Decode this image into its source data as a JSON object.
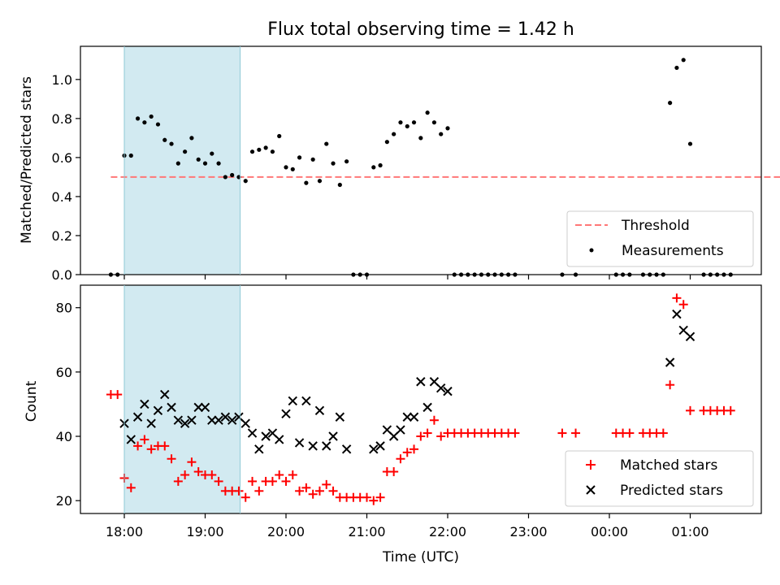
{
  "chart_data": [
    {
      "type": "scatter",
      "title": "Flux total observing time = 1.42 h",
      "ylabel": "Matched/Predicted stars",
      "ylim": [
        0,
        1.17
      ],
      "yticks": [
        "0.0",
        "0.2",
        "0.4",
        "0.6",
        "0.8",
        "1.0"
      ],
      "shaded_interval": [
        "18:00",
        "19:26"
      ],
      "threshold": {
        "name": "Threshold",
        "value": 0.5,
        "x_range": [
          "17:50",
          "02:30"
        ],
        "color": "#ff7777",
        "style": "dashed"
      },
      "series": [
        {
          "name": "Measurements",
          "color": "#000000",
          "x": [
            "17:50",
            "17:55",
            "18:00",
            "18:05",
            "18:10",
            "18:15",
            "18:20",
            "18:25",
            "18:30",
            "18:35",
            "18:40",
            "18:45",
            "18:50",
            "18:55",
            "19:00",
            "19:05",
            "19:10",
            "19:15",
            "19:20",
            "19:25",
            "19:30",
            "19:35",
            "19:40",
            "19:45",
            "19:50",
            "19:55",
            "20:00",
            "20:05",
            "20:10",
            "20:15",
            "20:20",
            "20:25",
            "20:30",
            "20:35",
            "20:40",
            "20:45",
            "20:50",
            "20:55",
            "21:00",
            "21:05",
            "21:10",
            "21:15",
            "21:20",
            "21:25",
            "21:30",
            "21:35",
            "21:40",
            "21:45",
            "21:50",
            "21:55",
            "22:00",
            "22:05",
            "22:10",
            "22:15",
            "22:20",
            "22:25",
            "22:30",
            "22:35",
            "22:40",
            "22:45",
            "22:50",
            "23:25",
            "23:35",
            "00:05",
            "00:10",
            "00:15",
            "00:25",
            "00:30",
            "00:35",
            "00:40",
            "00:45",
            "00:50",
            "00:55",
            "01:00",
            "01:10",
            "01:15",
            "01:20",
            "01:25",
            "01:30"
          ],
          "y": [
            0.0,
            0.0,
            0.61,
            0.61,
            0.8,
            0.78,
            0.81,
            0.77,
            0.69,
            0.67,
            0.57,
            0.63,
            0.7,
            0.59,
            0.57,
            0.62,
            0.57,
            0.5,
            0.51,
            0.5,
            0.48,
            0.63,
            0.64,
            0.65,
            0.63,
            0.71,
            0.55,
            0.54,
            0.6,
            0.47,
            0.59,
            0.48,
            0.67,
            0.57,
            0.46,
            0.58,
            0.0,
            0.0,
            0.0,
            0.55,
            0.56,
            0.68,
            0.72,
            0.78,
            0.76,
            0.78,
            0.7,
            0.83,
            0.78,
            0.72,
            0.75,
            0.0,
            0.0,
            0.0,
            0.0,
            0.0,
            0.0,
            0.0,
            0.0,
            0.0,
            0.0,
            0.0,
            0.0,
            0.0,
            0.0,
            0.0,
            0.0,
            0.0,
            0.0,
            0.0,
            0.88,
            1.06,
            1.1,
            0.67,
            0.0,
            0.0,
            0.0,
            0.0,
            0.0
          ]
        }
      ],
      "legend": [
        "Threshold",
        "Measurements"
      ],
      "legend_position": "lower-right"
    },
    {
      "type": "scatter",
      "xlabel": "Time (UTC)",
      "ylabel": "Count",
      "ylim": [
        16,
        87
      ],
      "yticks": [
        "20",
        "40",
        "60",
        "80"
      ],
      "xticks": [
        "18:00",
        "19:00",
        "20:00",
        "21:00",
        "22:00",
        "23:00",
        "00:00",
        "01:00"
      ],
      "shaded_interval": [
        "18:00",
        "19:26"
      ],
      "series": [
        {
          "name": "Matched stars",
          "color": "#ff0000",
          "marker": "+",
          "x": [
            "17:50",
            "17:55",
            "18:00",
            "18:05",
            "18:10",
            "18:15",
            "18:20",
            "18:25",
            "18:30",
            "18:35",
            "18:40",
            "18:45",
            "18:50",
            "18:55",
            "19:00",
            "19:05",
            "19:10",
            "19:15",
            "19:20",
            "19:25",
            "19:30",
            "19:35",
            "19:40",
            "19:45",
            "19:50",
            "19:55",
            "20:00",
            "20:05",
            "20:10",
            "20:15",
            "20:20",
            "20:25",
            "20:30",
            "20:35",
            "20:40",
            "20:45",
            "20:50",
            "20:55",
            "21:00",
            "21:05",
            "21:10",
            "21:15",
            "21:20",
            "21:25",
            "21:30",
            "21:35",
            "21:40",
            "21:45",
            "21:50",
            "21:55",
            "22:00",
            "22:05",
            "22:10",
            "22:15",
            "22:20",
            "22:25",
            "22:30",
            "22:35",
            "22:40",
            "22:45",
            "22:50",
            "23:25",
            "23:35",
            "00:05",
            "00:10",
            "00:15",
            "00:25",
            "00:30",
            "00:35",
            "00:40",
            "00:45",
            "00:50",
            "00:55",
            "01:00",
            "01:10",
            "01:15",
            "01:20",
            "01:25",
            "01:30"
          ],
          "y": [
            53,
            53,
            27,
            24,
            37,
            39,
            36,
            37,
            37,
            33,
            26,
            28,
            32,
            29,
            28,
            28,
            26,
            23,
            23,
            23,
            21,
            26,
            23,
            26,
            26,
            28,
            26,
            28,
            23,
            24,
            22,
            23,
            25,
            23,
            21,
            21,
            21,
            21,
            21,
            20,
            21,
            29,
            29,
            33,
            35,
            36,
            40,
            41,
            45,
            40,
            41,
            41,
            41,
            41,
            41,
            41,
            41,
            41,
            41,
            41,
            41,
            41,
            41,
            41,
            41,
            41,
            41,
            41,
            41,
            41,
            56,
            83,
            81,
            48,
            48,
            48,
            48,
            48,
            48
          ]
        },
        {
          "name": "Predicted stars",
          "color": "#000000",
          "marker": "x",
          "x": [
            "18:00",
            "18:05",
            "18:10",
            "18:15",
            "18:20",
            "18:25",
            "18:30",
            "18:35",
            "18:40",
            "18:45",
            "18:50",
            "18:55",
            "19:00",
            "19:05",
            "19:10",
            "19:15",
            "19:20",
            "19:25",
            "19:30",
            "19:35",
            "19:40",
            "19:45",
            "19:50",
            "19:55",
            "20:00",
            "20:05",
            "20:10",
            "20:15",
            "20:20",
            "20:25",
            "20:30",
            "20:35",
            "20:40",
            "20:45",
            "21:05",
            "21:10",
            "21:15",
            "21:20",
            "21:25",
            "21:30",
            "21:35",
            "21:40",
            "21:45",
            "21:50",
            "21:55",
            "22:00",
            "00:45",
            "00:50",
            "00:55",
            "01:00"
          ],
          "y": [
            44,
            39,
            46,
            50,
            44,
            48,
            53,
            49,
            45,
            44,
            45,
            49,
            49,
            45,
            45,
            46,
            45,
            46,
            44,
            41,
            36,
            40,
            41,
            39,
            47,
            51,
            38,
            51,
            37,
            48,
            37,
            40,
            46,
            36,
            36,
            37,
            42,
            40,
            42,
            46,
            46,
            57,
            49,
            57,
            55,
            54,
            63,
            78,
            73,
            71
          ]
        }
      ],
      "legend": [
        "Matched stars",
        "Predicted stars"
      ],
      "legend_position": "lower-right"
    }
  ]
}
